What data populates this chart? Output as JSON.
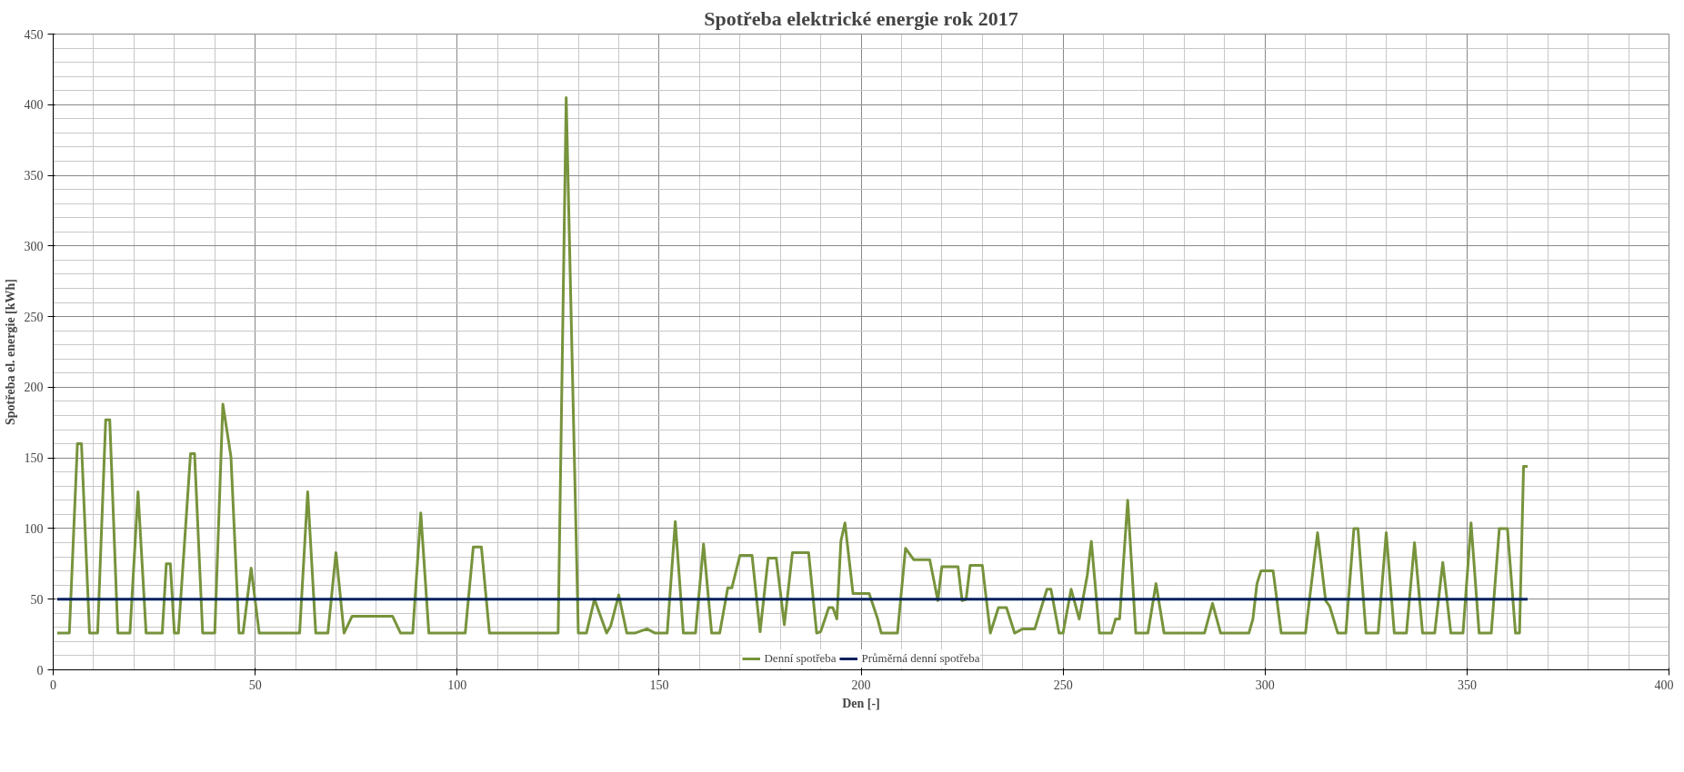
{
  "chart_data": {
    "type": "line",
    "title": "Spotřeba elektrické energie rok 2017",
    "xlabel": "Den [-]",
    "ylabel": "Spotřeba el. energie [kWh]",
    "xlim": [
      0,
      400
    ],
    "xticks": [
      0,
      50,
      100,
      150,
      200,
      250,
      300,
      350,
      400
    ],
    "ylim": [
      0,
      450
    ],
    "yticks": [
      0,
      50,
      100,
      150,
      200,
      250,
      300,
      350,
      400,
      450
    ],
    "grid": true,
    "legend": "bottom",
    "marker": "none",
    "line_style": "solid",
    "series": [
      {
        "name": "Denní spotřeba",
        "color": "#77933c",
        "x": [
          1,
          4,
          6,
          7,
          9,
          11,
          13,
          14,
          16,
          19,
          21,
          23,
          27,
          28,
          29,
          30,
          31,
          34,
          35,
          37,
          40,
          42,
          44,
          46,
          47,
          49,
          51,
          61,
          63,
          65,
          68,
          70,
          72,
          74,
          84,
          86,
          89,
          91,
          93,
          100,
          102,
          104,
          106,
          108,
          125,
          127,
          130,
          132,
          134,
          137,
          138,
          140,
          142,
          144,
          147,
          149,
          152,
          154,
          156,
          159,
          161,
          163,
          165,
          167,
          168,
          170,
          173,
          175,
          177,
          179,
          181,
          183,
          187,
          189,
          190,
          192,
          193,
          194,
          195,
          196,
          198,
          202,
          204,
          205,
          209,
          211,
          213,
          217,
          219,
          220,
          224,
          225,
          226,
          227,
          230,
          232,
          234,
          236,
          238,
          240,
          243,
          246,
          247,
          249,
          250,
          252,
          254,
          256,
          257,
          259,
          262,
          263,
          264,
          266,
          268,
          271,
          273,
          275,
          285,
          287,
          289,
          296,
          297,
          298,
          299,
          302,
          304,
          310,
          313,
          315,
          316,
          318,
          320,
          322,
          323,
          325,
          328,
          330,
          332,
          335,
          337,
          339,
          342,
          344,
          346,
          349,
          351,
          353,
          356,
          358,
          360,
          362,
          363,
          364,
          365
        ],
        "values": [
          26,
          26,
          160,
          160,
          26,
          26,
          177,
          177,
          26,
          26,
          126,
          26,
          26,
          75,
          75,
          26,
          26,
          153,
          153,
          26,
          26,
          188,
          151,
          26,
          26,
          72,
          26,
          26,
          126,
          26,
          26,
          83,
          26,
          38,
          38,
          26,
          26,
          111,
          26,
          26,
          26,
          87,
          87,
          26,
          26,
          405,
          26,
          26,
          50,
          26,
          31,
          53,
          26,
          26,
          29,
          26,
          26,
          105,
          26,
          26,
          89,
          26,
          26,
          58,
          58,
          81,
          81,
          27,
          79,
          79,
          32,
          83,
          83,
          26,
          27,
          44,
          44,
          36,
          91,
          104,
          54,
          54,
          37,
          26,
          26,
          86,
          78,
          78,
          49,
          73,
          73,
          49,
          50,
          74,
          74,
          26,
          44,
          44,
          26,
          29,
          29,
          57,
          57,
          26,
          26,
          57,
          36,
          67,
          91,
          26,
          26,
          36,
          36,
          120,
          26,
          26,
          61,
          26,
          26,
          47,
          26,
          26,
          36,
          61,
          70,
          70,
          26,
          26,
          97,
          49,
          45,
          26,
          26,
          100,
          100,
          26,
          26,
          97,
          26,
          26,
          90,
          26,
          26,
          76,
          26,
          26,
          104,
          26,
          26,
          100,
          100,
          26,
          26,
          144,
          144
        ]
      },
      {
        "name": "Průměrná denní spotřeba",
        "color": "#002060",
        "x": [
          1,
          365
        ],
        "values": [
          50,
          50
        ]
      }
    ]
  }
}
